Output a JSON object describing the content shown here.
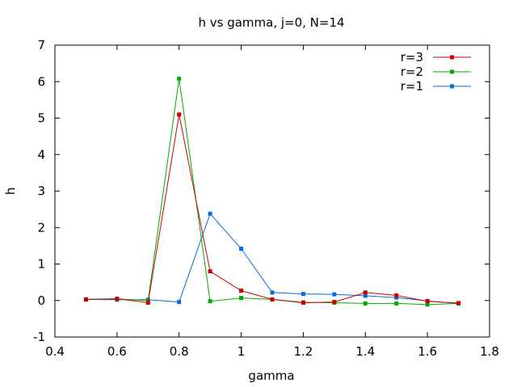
{
  "chart_data": {
    "type": "line",
    "title": "h vs gamma, j=0, N=14",
    "xlabel": "gamma",
    "ylabel": "h",
    "xlim": [
      0.4,
      1.8
    ],
    "ylim": [
      -1,
      7
    ],
    "xticks": [
      0.4,
      0.6,
      0.8,
      1,
      1.2,
      1.4,
      1.6,
      1.8
    ],
    "xtick_labels": [
      "0.4",
      "0.6",
      "0.8",
      "1",
      "1.2",
      "1.4",
      "1.6",
      "1.8"
    ],
    "yticks": [
      -1,
      0,
      1,
      2,
      3,
      4,
      5,
      6,
      7
    ],
    "ytick_labels": [
      "-1",
      "0",
      "1",
      "2",
      "3",
      "4",
      "5",
      "6",
      "7"
    ],
    "grid": false,
    "legend_position": "top-right",
    "x": [
      0.5,
      0.6,
      0.7,
      0.8,
      0.9,
      1.0,
      1.1,
      1.2,
      1.3,
      1.4,
      1.5,
      1.6,
      1.7
    ],
    "series": [
      {
        "name": "r=3",
        "color": "#cc0000",
        "values": [
          0.03,
          0.05,
          -0.06,
          5.1,
          0.8,
          0.27,
          0.03,
          -0.06,
          -0.04,
          0.22,
          0.14,
          -0.02,
          -0.07
        ]
      },
      {
        "name": "r=2",
        "color": "#00aa00",
        "values": [
          0.03,
          0.04,
          0.0,
          6.08,
          -0.02,
          0.07,
          0.03,
          -0.05,
          -0.06,
          -0.08,
          -0.08,
          -0.11,
          -0.08
        ]
      },
      {
        "name": "r=1",
        "color": "#0070e0",
        "values": [
          0.03,
          0.02,
          0.02,
          -0.04,
          2.38,
          1.42,
          0.22,
          0.18,
          0.17,
          0.13,
          0.08,
          -0.01,
          -0.08
        ]
      }
    ]
  }
}
